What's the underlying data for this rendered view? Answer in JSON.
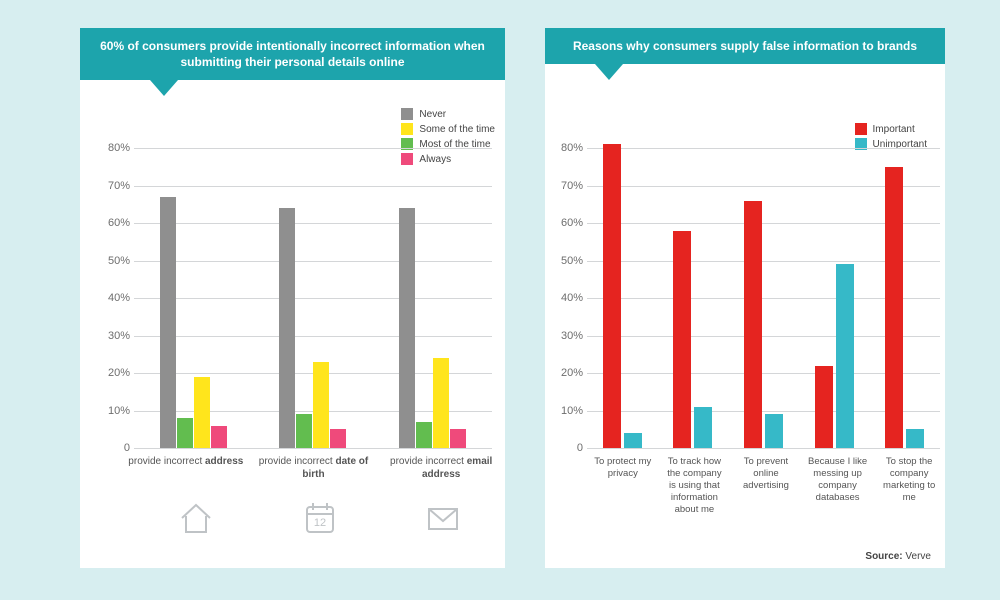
{
  "background_color": "#d7eef0",
  "panel_bg": "#ffffff",
  "banner_bg": "#1da4ac",
  "banner_text_color": "#ffffff",
  "grid_color": "#d4d6d8",
  "axis_text_color": "#6d6d6d",
  "left": {
    "banner": "60% of consumers provide intentionally incorrect information when submitting their personal details online",
    "type": "grouped-bar",
    "ylim": [
      0,
      80
    ],
    "ytick_step": 10,
    "ytick_suffix": "%",
    "legend": [
      {
        "label": "Never",
        "color": "#8f8f8f"
      },
      {
        "label": "Some of the time",
        "color": "#ffe51c"
      },
      {
        "label": "Most of the time",
        "color": "#62bd4f"
      },
      {
        "label": "Always",
        "color": "#ef4a7b"
      }
    ],
    "categories": [
      {
        "label_html": "provide incorrect <b>address</b>",
        "values": [
          67,
          19,
          8,
          6
        ],
        "icon": "home"
      },
      {
        "label_html": "provide incorrect <b>date of birth</b>",
        "values": [
          64,
          23,
          9,
          5
        ],
        "icon": "calendar"
      },
      {
        "label_html": "provide incorrect <b>email address</b>",
        "values": [
          64,
          24,
          7,
          5
        ],
        "icon": "mail"
      }
    ],
    "bar_order_indices": [
      0,
      2,
      1,
      3
    ],
    "icon_color": "#bfc3c6"
  },
  "right": {
    "banner": "Reasons why consumers supply false information to brands",
    "type": "grouped-bar",
    "ylim": [
      0,
      80
    ],
    "ytick_step": 10,
    "ytick_suffix": "%",
    "legend": [
      {
        "label": "Important",
        "color": "#e52420"
      },
      {
        "label": "Unimportant",
        "color": "#36b9c8"
      }
    ],
    "categories": [
      {
        "label": "To protect my privacy",
        "values": [
          81,
          4
        ]
      },
      {
        "label": "To track how the company is using that information about me",
        "values": [
          58,
          11
        ]
      },
      {
        "label": "To prevent online advertising",
        "values": [
          66,
          9
        ]
      },
      {
        "label": "Because I like messing up company databases",
        "values": [
          22,
          49
        ]
      },
      {
        "label": "To stop the company marketing to me",
        "values": [
          75,
          5
        ]
      }
    ],
    "source_label": "Source:",
    "source_value": "Verve"
  }
}
